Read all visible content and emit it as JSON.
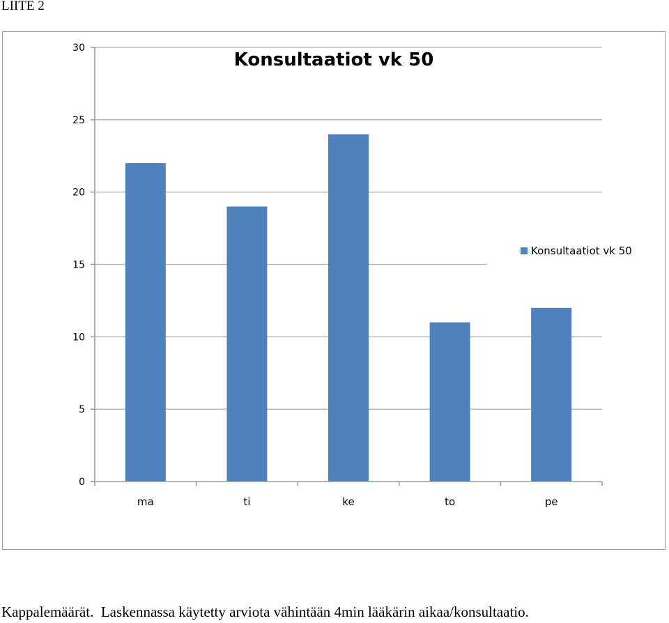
{
  "page": {
    "heading": "LIITE 2",
    "caption": "Kappalemäärät.  Laskennassa käytetty arviota vähintään 4min lääkärin aikaa/konsultaatio."
  },
  "colors": {
    "bar": "#4f81bd",
    "grid": "#bdbdbd",
    "axis": "#9a9a9a",
    "text": "#000000"
  },
  "chart_data": {
    "type": "bar",
    "title": "Konsultaatiot vk 50",
    "categories": [
      "ma",
      "ti",
      "ke",
      "to",
      "pe"
    ],
    "series": [
      {
        "name": "Konsultaatiot vk 50",
        "values": [
          22,
          19,
          24,
          11,
          12
        ]
      }
    ],
    "ylim": [
      0,
      30
    ],
    "yticks": [
      0,
      5,
      10,
      15,
      20,
      25,
      30
    ],
    "xlabel": "",
    "ylabel": "",
    "grid": true,
    "legend": "right"
  }
}
